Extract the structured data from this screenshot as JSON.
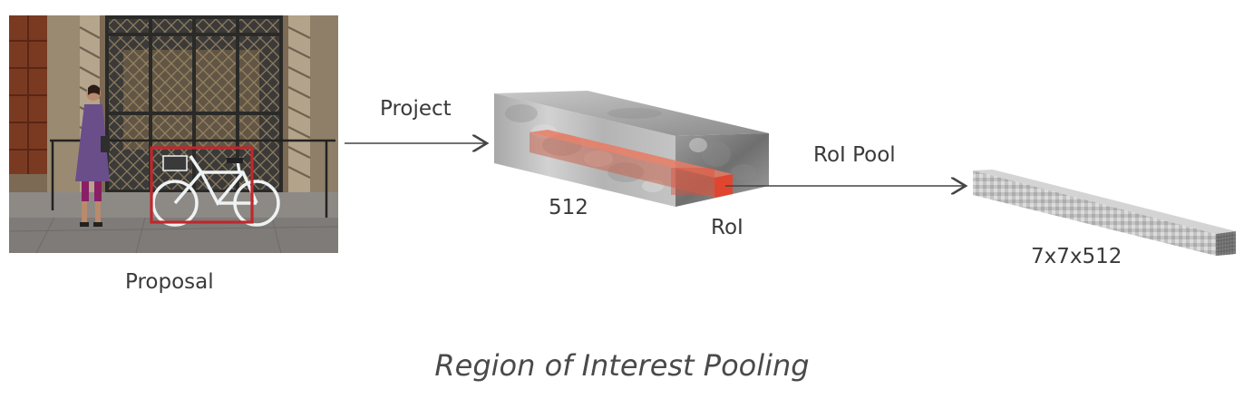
{
  "labels": {
    "proposal": "Proposal",
    "project": "Project",
    "channels": "512",
    "roi": "RoI",
    "roi_pool": "RoI Pool",
    "output_size": "7x7x512"
  },
  "caption": "Region of Interest Pooling",
  "colors": {
    "proposal_box": "#c0272d",
    "roi_fill": "#d9533f",
    "arrow": "#444444"
  }
}
